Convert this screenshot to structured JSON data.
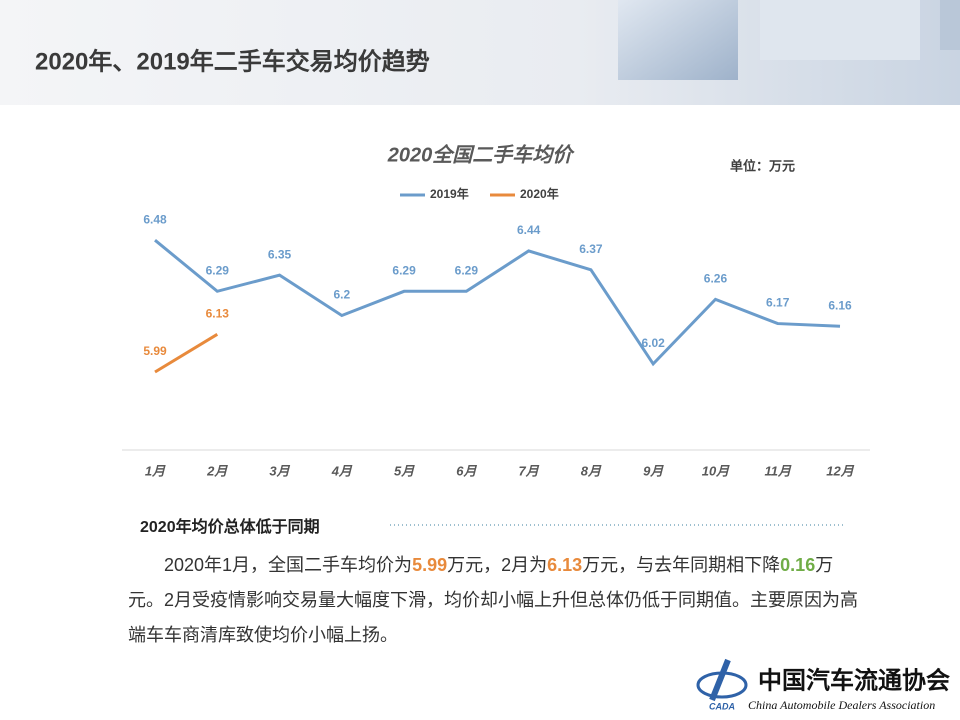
{
  "header": {
    "title": "2020年、2019年二手车交易均价趋势"
  },
  "chart_data": {
    "type": "line",
    "title": "2020全国二手车均价",
    "unit": "单位：万元",
    "categories": [
      "1月",
      "2月",
      "3月",
      "4月",
      "5月",
      "6月",
      "7月",
      "8月",
      "9月",
      "10月",
      "11月",
      "12月"
    ],
    "series": [
      {
        "name": "2019年",
        "color": "#6b9ccb",
        "values": [
          6.48,
          6.29,
          6.35,
          6.2,
          6.29,
          6.29,
          6.44,
          6.37,
          6.02,
          6.26,
          6.17,
          6.16
        ]
      },
      {
        "name": "2020年",
        "color": "#e88a3c",
        "values": [
          5.99,
          6.13,
          null,
          null,
          null,
          null,
          null,
          null,
          null,
          null,
          null,
          null
        ]
      }
    ],
    "ylim": [
      5.7,
      6.7
    ],
    "legend": "top"
  },
  "section": {
    "heading": "2020年均价总体低于同期",
    "paragraph": [
      "2020年1月，全国二手车均价为",
      "5.99",
      "万元，2月为",
      "6.13",
      "万元，与去年同期相下降",
      "0.16",
      "万元。2月受疫情影响交易量大幅度下滑，均价却小幅上升但总体仍低于同期值。主要原因为高端车车商清库致使均价小幅上扬。"
    ]
  },
  "logo": {
    "cn": "中国汽车流通协会",
    "en": "China Automobile Dealers Association",
    "abbr": "CADA"
  }
}
